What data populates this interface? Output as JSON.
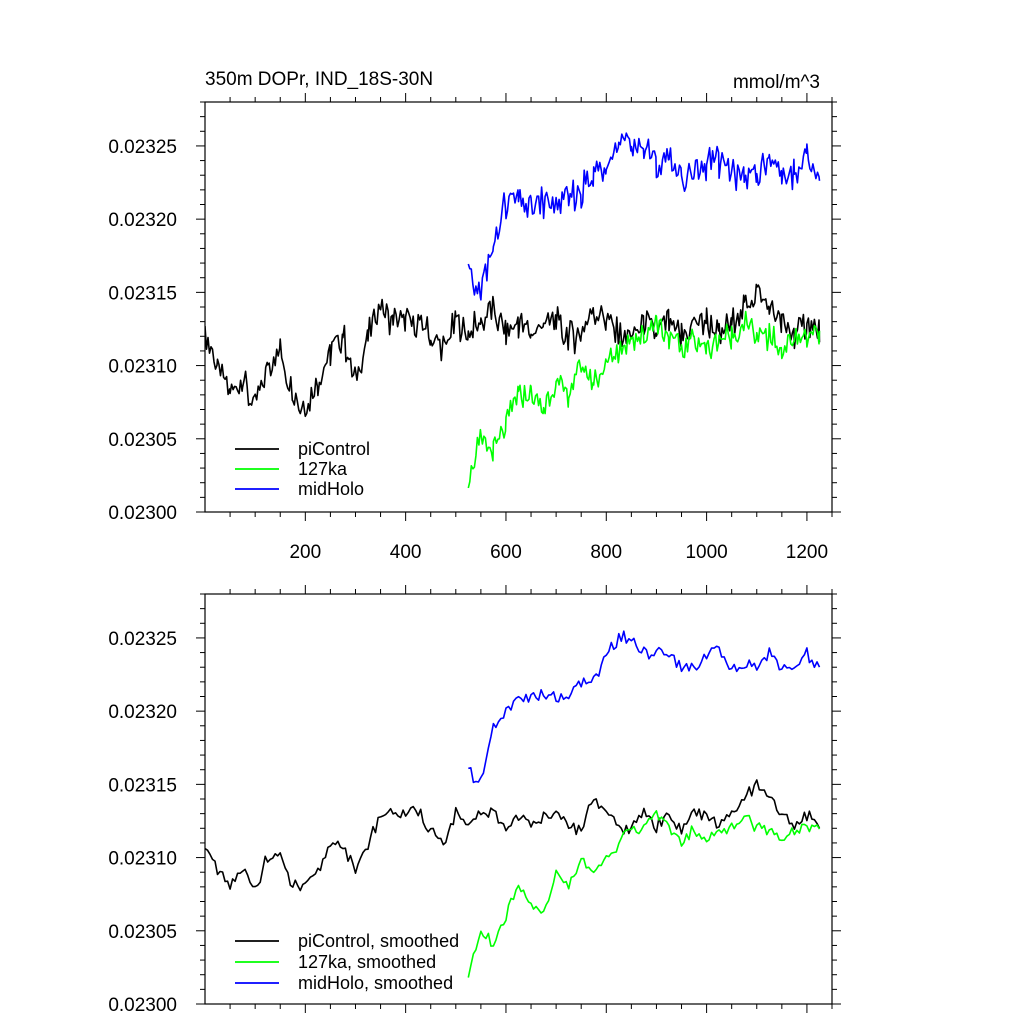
{
  "chart_data": [
    {
      "type": "line",
      "title": "350m DOPr, IND_18S-30N",
      "units": "mmol/m^3",
      "xlim": [
        0,
        1250
      ],
      "ylim": [
        0.023,
        0.02328
      ],
      "xticks": [
        200,
        400,
        600,
        800,
        1000,
        1200
      ],
      "xtick_labels": [
        "200",
        "400",
        "600",
        "800",
        "1000",
        "1200"
      ],
      "yticks": [
        0.023,
        0.02305,
        0.0231,
        0.02315,
        0.0232,
        0.02325
      ],
      "ytick_labels": [
        "0.02300",
        "0.02305",
        "0.02310",
        "0.02315",
        "0.02320",
        "0.02325"
      ],
      "grid": false,
      "legend_position": "bottom-left",
      "series": [
        {
          "name": "piControl",
          "color": "#000000",
          "x": [
            0,
            25,
            50,
            75,
            100,
            125,
            150,
            175,
            200,
            225,
            250,
            275,
            300,
            325,
            350,
            375,
            400,
            425,
            450,
            475,
            500,
            525,
            550,
            575,
            600,
            625,
            650,
            675,
            700,
            725,
            750,
            775,
            800,
            825,
            850,
            875,
            900,
            925,
            950,
            975,
            1000,
            1025,
            1050,
            1075,
            1100,
            1125,
            1150,
            1175,
            1200,
            1225
          ],
          "y": [
            0.02312,
            0.0231,
            0.02308,
            0.02309,
            0.02307,
            0.0231,
            0.02311,
            0.02308,
            0.02307,
            0.02309,
            0.02311,
            0.02312,
            0.02309,
            0.02312,
            0.02314,
            0.02313,
            0.02313,
            0.02313,
            0.02312,
            0.02311,
            0.02313,
            0.02312,
            0.02313,
            0.02314,
            0.02312,
            0.02313,
            0.02312,
            0.02313,
            0.02313,
            0.02312,
            0.02312,
            0.02314,
            0.02313,
            0.02312,
            0.02312,
            0.02313,
            0.02312,
            0.02313,
            0.02312,
            0.02313,
            0.02313,
            0.02312,
            0.02313,
            0.02314,
            0.02315,
            0.02314,
            0.02313,
            0.02312,
            0.02313,
            0.02312
          ]
        },
        {
          "name": "127ka",
          "color": "#00ff00",
          "x": [
            525,
            550,
            575,
            600,
            625,
            650,
            675,
            700,
            725,
            750,
            775,
            800,
            825,
            850,
            875,
            900,
            925,
            950,
            975,
            1000,
            1025,
            1050,
            1075,
            1100,
            1125,
            1150,
            1175,
            1200,
            1225
          ],
          "y": [
            0.02302,
            0.02305,
            0.02304,
            0.02306,
            0.02308,
            0.02308,
            0.02307,
            0.02309,
            0.02308,
            0.0231,
            0.02309,
            0.0231,
            0.02311,
            0.02312,
            0.02312,
            0.02313,
            0.02312,
            0.02311,
            0.02312,
            0.02311,
            0.02312,
            0.02312,
            0.02313,
            0.02312,
            0.02312,
            0.02311,
            0.02312,
            0.02312,
            0.02312
          ]
        },
        {
          "name": "midHolo",
          "color": "#0000ff",
          "x": [
            525,
            550,
            575,
            600,
            625,
            650,
            675,
            700,
            725,
            750,
            775,
            800,
            825,
            850,
            875,
            900,
            925,
            950,
            975,
            1000,
            1025,
            1050,
            1075,
            1100,
            1125,
            1150,
            1175,
            1200,
            1225
          ],
          "y": [
            0.02316,
            0.02315,
            0.02318,
            0.02321,
            0.02321,
            0.02321,
            0.02321,
            0.02321,
            0.02321,
            0.02322,
            0.02323,
            0.02324,
            0.02325,
            0.02325,
            0.02325,
            0.02324,
            0.02324,
            0.02323,
            0.02323,
            0.02324,
            0.02324,
            0.02323,
            0.02323,
            0.02323,
            0.02324,
            0.02323,
            0.02323,
            0.02324,
            0.02323
          ]
        }
      ]
    },
    {
      "type": "line",
      "xlim": [
        0,
        1250
      ],
      "ylim": [
        0.023,
        0.02328
      ],
      "xticks": [
        200,
        400,
        600,
        800,
        1000,
        1200
      ],
      "yticks": [
        0.023,
        0.02305,
        0.0231,
        0.02315,
        0.0232,
        0.02325
      ],
      "ytick_labels": [
        "0.02300",
        "0.02305",
        "0.02310",
        "0.02315",
        "0.02320",
        "0.02325"
      ],
      "grid": false,
      "legend_position": "bottom-left",
      "series": [
        {
          "name": "piControl, smoothed",
          "color": "#000000",
          "x": [
            0,
            25,
            50,
            75,
            100,
            125,
            150,
            175,
            200,
            225,
            250,
            275,
            300,
            325,
            350,
            375,
            400,
            425,
            450,
            475,
            500,
            525,
            550,
            575,
            600,
            625,
            650,
            675,
            700,
            725,
            750,
            775,
            800,
            825,
            850,
            875,
            900,
            925,
            950,
            975,
            1000,
            1025,
            1050,
            1075,
            1100,
            1125,
            1150,
            1175,
            1200,
            1225
          ],
          "y": [
            0.02311,
            0.02309,
            0.02308,
            0.02309,
            0.02308,
            0.0231,
            0.0231,
            0.02308,
            0.02308,
            0.02309,
            0.02311,
            0.02311,
            0.02309,
            0.02311,
            0.02313,
            0.02313,
            0.02313,
            0.02313,
            0.02312,
            0.02311,
            0.02313,
            0.02312,
            0.02313,
            0.02313,
            0.02312,
            0.02313,
            0.02312,
            0.02313,
            0.02313,
            0.02312,
            0.02312,
            0.02314,
            0.02313,
            0.02312,
            0.02312,
            0.02313,
            0.02312,
            0.02313,
            0.02312,
            0.02313,
            0.02313,
            0.02312,
            0.02313,
            0.02314,
            0.02315,
            0.02314,
            0.02313,
            0.02312,
            0.02313,
            0.02312
          ]
        },
        {
          "name": "127ka, smoothed",
          "color": "#00ff00",
          "x": [
            525,
            550,
            575,
            600,
            625,
            650,
            675,
            700,
            725,
            750,
            775,
            800,
            825,
            850,
            875,
            900,
            925,
            950,
            975,
            1000,
            1025,
            1050,
            1075,
            1100,
            1125,
            1150,
            1175,
            1200,
            1225
          ],
          "y": [
            0.02302,
            0.02305,
            0.02304,
            0.02306,
            0.02308,
            0.02307,
            0.02306,
            0.02309,
            0.02308,
            0.0231,
            0.02309,
            0.0231,
            0.02311,
            0.02312,
            0.02312,
            0.02313,
            0.02312,
            0.02311,
            0.02312,
            0.02311,
            0.02312,
            0.02312,
            0.02313,
            0.02312,
            0.02312,
            0.02311,
            0.02312,
            0.02312,
            0.02312
          ]
        },
        {
          "name": "midHolo, smoothed",
          "color": "#0000ff",
          "x": [
            525,
            550,
            575,
            600,
            625,
            650,
            675,
            700,
            725,
            750,
            775,
            800,
            825,
            850,
            875,
            900,
            925,
            950,
            975,
            1000,
            1025,
            1050,
            1075,
            1100,
            1125,
            1150,
            1175,
            1200,
            1225
          ],
          "y": [
            0.02316,
            0.02315,
            0.02319,
            0.0232,
            0.02321,
            0.02321,
            0.02321,
            0.02321,
            0.02321,
            0.02322,
            0.02322,
            0.02324,
            0.02325,
            0.02325,
            0.02324,
            0.02324,
            0.02324,
            0.02323,
            0.02323,
            0.02324,
            0.02324,
            0.02323,
            0.02323,
            0.02323,
            0.02324,
            0.02323,
            0.02323,
            0.02324,
            0.02323
          ]
        }
      ]
    }
  ]
}
